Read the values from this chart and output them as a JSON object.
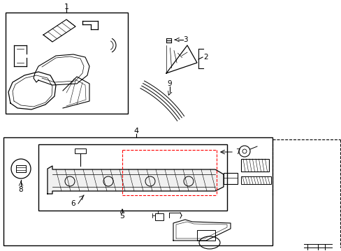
{
  "background_color": "#ffffff",
  "line_color": "#000000",
  "red_color": "#ff0000",
  "gray_color": "#888888",
  "figsize": [
    4.89,
    3.6
  ],
  "dpi": 100
}
